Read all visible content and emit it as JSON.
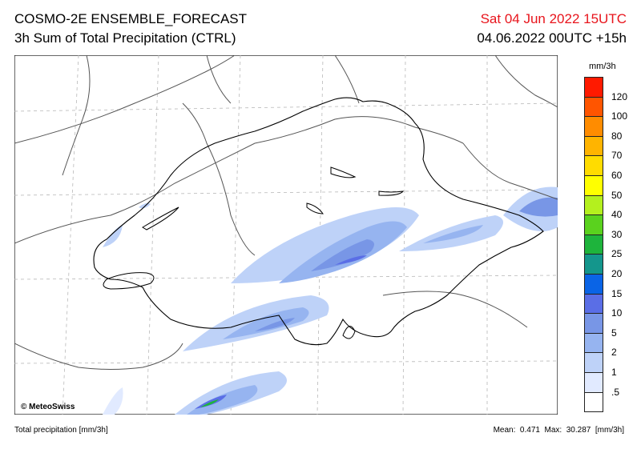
{
  "header": {
    "title": "COSMO-2E ENSEMBLE_FORECAST",
    "subtitle": "3h Sum of Total Precipitation (CTRL)",
    "valid_time": "Sat 04 Jun 2022 15UTC",
    "run_time": "04.06.2022 00UTC +15h"
  },
  "legend": {
    "unit": "mm/3h",
    "labels": [
      "120",
      "100",
      "80",
      "70",
      "60",
      "50",
      "40",
      "30",
      "25",
      "20",
      "15",
      "10",
      "5",
      "2",
      "1",
      ".5"
    ],
    "colors": [
      "#ff1a00",
      "#ff5500",
      "#ff8c00",
      "#ffb400",
      "#ffdc00",
      "#ffff00",
      "#b4f01e",
      "#5ad21e",
      "#1eb43c",
      "#14968c",
      "#0a64e6",
      "#5a6ee6",
      "#7896e6",
      "#96b4f0",
      "#bed2f8",
      "#e1eaff",
      "#ffffff"
    ]
  },
  "map": {
    "credit": "© MeteoSwiss"
  },
  "footer": {
    "left": "Total precipitation [mm/3h]",
    "right": "Mean:  0.471  Max:  30.287  [mm/3h]"
  }
}
